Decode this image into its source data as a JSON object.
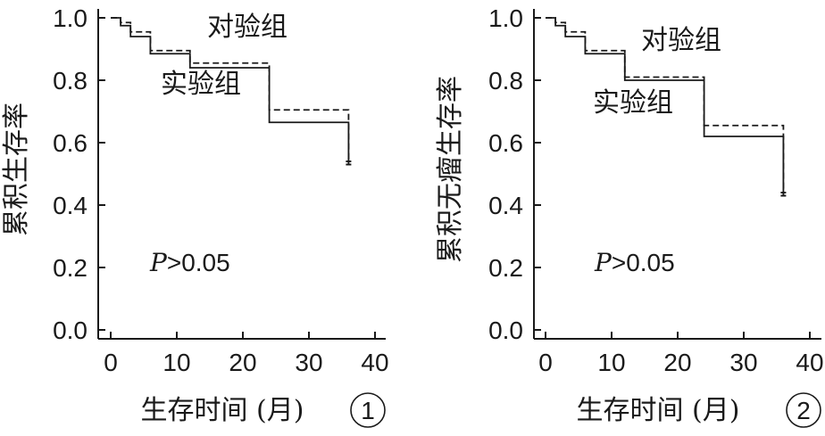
{
  "chart_data": [
    {
      "type": "line",
      "subtype": "kaplan-meier step",
      "panel_number": "1",
      "xlabel": "生存时间 (月)",
      "ylabel": "累积生存率",
      "xlim": [
        0,
        40
      ],
      "ylim": [
        0,
        1.0
      ],
      "x_ticks": [
        "0",
        "10",
        "20",
        "30",
        "40"
      ],
      "y_ticks": [
        "0.0",
        "0.2",
        "0.4",
        "0.6",
        "0.8",
        "1.0"
      ],
      "annotation_p_symbol": "P",
      "annotation_p_rest": ">0.05",
      "series": [
        {
          "name": "对验组",
          "line_style": "dashed",
          "steps": [
            [
              0,
              1.0
            ],
            [
              1.5,
              0.985
            ],
            [
              3,
              0.955
            ],
            [
              6,
              0.895
            ],
            [
              12,
              0.855
            ],
            [
              24,
              0.705
            ],
            [
              36,
              0.705
            ]
          ],
          "censor_end": 0.54
        },
        {
          "name": "实验组",
          "line_style": "solid",
          "steps": [
            [
              0,
              1.0
            ],
            [
              1.5,
              0.975
            ],
            [
              3,
              0.94
            ],
            [
              6,
              0.885
            ],
            [
              12,
              0.84
            ],
            [
              24,
              0.665
            ],
            [
              36,
              0.665
            ]
          ],
          "censor_end": 0.53
        }
      ]
    },
    {
      "type": "line",
      "subtype": "kaplan-meier step",
      "panel_number": "2",
      "xlabel": "生存时间 (月)",
      "ylabel": "累积无瘤生存率",
      "xlim": [
        0,
        40
      ],
      "ylim": [
        0,
        1.0
      ],
      "x_ticks": [
        "0",
        "10",
        "20",
        "30",
        "40"
      ],
      "y_ticks": [
        "0.0",
        "0.2",
        "0.4",
        "0.6",
        "0.8",
        "1.0"
      ],
      "annotation_p_symbol": "P",
      "annotation_p_rest": ">0.05",
      "series": [
        {
          "name": "对验组",
          "line_style": "dashed",
          "steps": [
            [
              0,
              1.0
            ],
            [
              1.5,
              0.985
            ],
            [
              3,
              0.955
            ],
            [
              6,
              0.895
            ],
            [
              12,
              0.81
            ],
            [
              24,
              0.655
            ],
            [
              36,
              0.655
            ]
          ],
          "censor_end": 0.44
        },
        {
          "name": "实验组",
          "line_style": "solid",
          "steps": [
            [
              0,
              1.0
            ],
            [
              1.5,
              0.975
            ],
            [
              3,
              0.94
            ],
            [
              6,
              0.885
            ],
            [
              12,
              0.8
            ],
            [
              24,
              0.62
            ],
            [
              36,
              0.62
            ]
          ],
          "censor_end": 0.43
        }
      ]
    }
  ]
}
